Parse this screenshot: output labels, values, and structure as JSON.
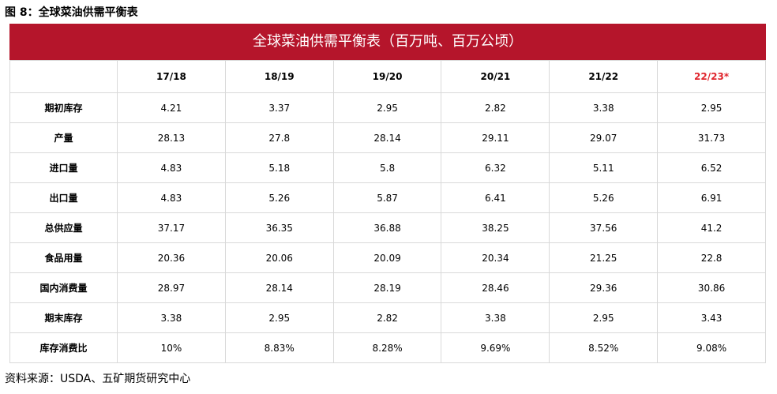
{
  "figure": {
    "title": "图 8：全球菜油供需平衡表"
  },
  "table": {
    "banner": "全球菜油供需平衡表（百万吨、百万公顷）",
    "columns": [
      "",
      "17/18",
      "18/19",
      "19/20",
      "20/21",
      "21/22",
      "22/23*"
    ],
    "highlight_color": "#e0262e",
    "rows": [
      {
        "label": "期初库存",
        "values": [
          "4.21",
          "3.37",
          "2.95",
          "2.82",
          "3.38",
          "2.95"
        ]
      },
      {
        "label": "产量",
        "values": [
          "28.13",
          "27.8",
          "28.14",
          "29.11",
          "29.07",
          "31.73"
        ]
      },
      {
        "label": "进口量",
        "values": [
          "4.83",
          "5.18",
          "5.8",
          "6.32",
          "5.11",
          "6.52"
        ]
      },
      {
        "label": "出口量",
        "values": [
          "4.83",
          "5.26",
          "5.87",
          "6.41",
          "5.26",
          "6.91"
        ]
      },
      {
        "label": "总供应量",
        "values": [
          "37.17",
          "36.35",
          "36.88",
          "38.25",
          "37.56",
          "41.2"
        ]
      },
      {
        "label": "食品用量",
        "values": [
          "20.36",
          "20.06",
          "20.09",
          "20.34",
          "21.25",
          "22.8"
        ]
      },
      {
        "label": "国内消费量",
        "values": [
          "28.97",
          "28.14",
          "28.19",
          "28.46",
          "29.36",
          "30.86"
        ]
      },
      {
        "label": "期末库存",
        "values": [
          "3.38",
          "2.95",
          "2.82",
          "3.38",
          "2.95",
          "3.43"
        ]
      },
      {
        "label": "库存消费比",
        "values": [
          "10%",
          "8.83%",
          "8.28%",
          "9.69%",
          "8.52%",
          "9.08%"
        ]
      }
    ]
  },
  "banner_color": "#b5152b",
  "source": "资料来源：USDA、五矿期货研究中心"
}
